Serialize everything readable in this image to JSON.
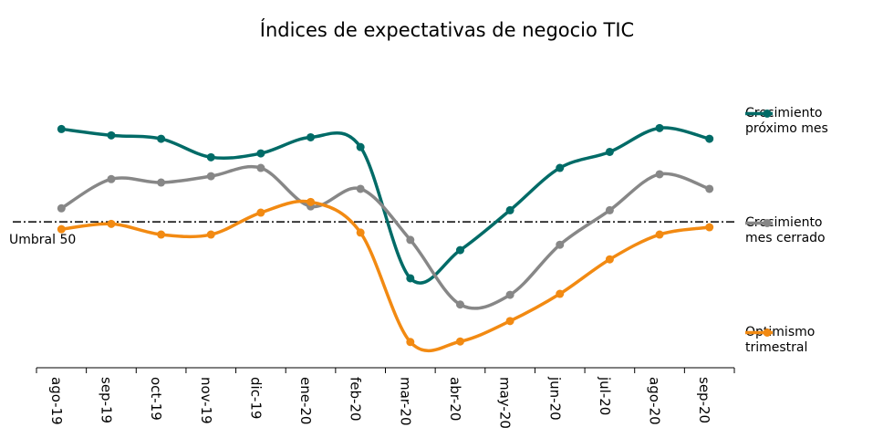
{
  "chart_data": {
    "type": "line",
    "title": "Índices de expectativas de negocio TIC",
    "categories": [
      "ago-19",
      "sep-19",
      "oct-19",
      "nov-19",
      "dic-19",
      "ene-20",
      "feb-20",
      "mar-20",
      "abr-20",
      "may-20",
      "jun-20",
      "jul-20",
      "ago-20",
      "sep-20"
    ],
    "series": [
      {
        "name": "Crecimiento próximo mes",
        "color": "#006b67",
        "values": [
          69.1,
          67.8,
          67.1,
          63.3,
          64.1,
          67.4,
          65.4,
          38.4,
          44.2,
          52.4,
          61.1,
          64.4,
          69.3,
          67.1
        ]
      },
      {
        "name": "Crecimiento mes cerrado",
        "color": "#878787",
        "values": [
          52.8,
          58.8,
          58.1,
          59.4,
          61.1,
          53.2,
          56.8,
          46.3,
          33.0,
          35.0,
          45.3,
          52.4,
          59.8,
          56.8
        ]
      },
      {
        "name": "Optimismo trimestral",
        "color": "#f28a12",
        "values": [
          48.5,
          49.6,
          47.4,
          47.4,
          51.9,
          54.1,
          47.8,
          25.3,
          25.4,
          29.6,
          35.2,
          42.3,
          47.4,
          48.9
        ]
      }
    ],
    "threshold": {
      "label": "Umbral 50",
      "value": 50
    },
    "ylim": [
      20,
      75
    ],
    "smooth": true
  }
}
